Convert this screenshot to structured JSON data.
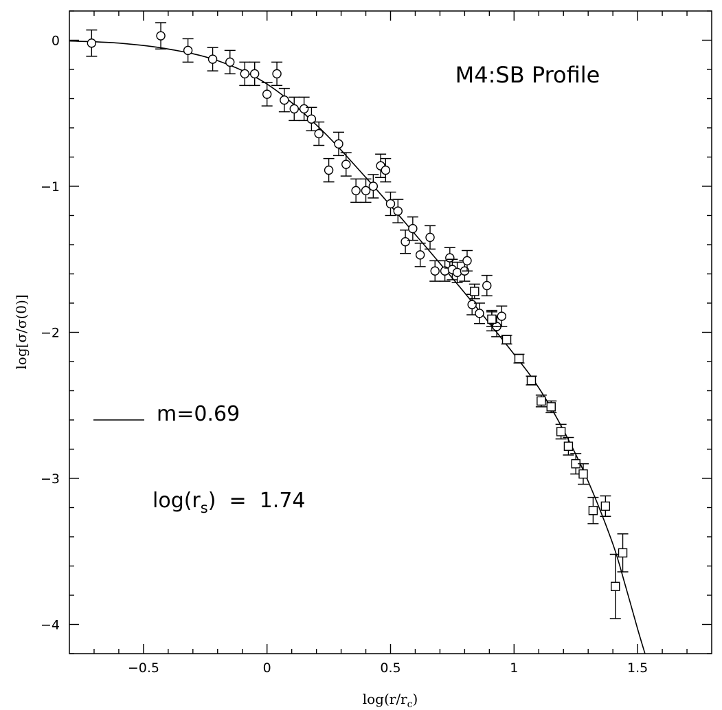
{
  "chart_data": {
    "type": "scatter",
    "title": "M4:SB Profile",
    "xlabel": "log(r/r_c)",
    "ylabel": "log[σ/σ(0)]",
    "xlim": [
      -0.8,
      1.8
    ],
    "ylim": [
      -4.2,
      0.2
    ],
    "x_ticks": [
      -0.5,
      0,
      0.5,
      1,
      1.5
    ],
    "x_tick_labels": [
      "−0.5",
      "0",
      "0.5",
      "1",
      "1.5"
    ],
    "y_ticks": [
      0,
      -1,
      -2,
      -3,
      -4
    ],
    "y_tick_labels": [
      "0",
      "−1",
      "−2",
      "−3",
      "−4"
    ],
    "legend": {
      "line_label": "m=0.69",
      "placement": "left-middle"
    },
    "annotation": "log(r_s) = 1.74",
    "series": [
      {
        "name": "circles",
        "marker": "circle",
        "points": [
          {
            "x": -0.71,
            "y": -0.02,
            "err": 0.09
          },
          {
            "x": -0.43,
            "y": 0.03,
            "err": 0.09
          },
          {
            "x": -0.32,
            "y": -0.07,
            "err": 0.08
          },
          {
            "x": -0.22,
            "y": -0.13,
            "err": 0.08
          },
          {
            "x": -0.15,
            "y": -0.15,
            "err": 0.08
          },
          {
            "x": -0.09,
            "y": -0.23,
            "err": 0.08
          },
          {
            "x": -0.05,
            "y": -0.23,
            "err": 0.08
          },
          {
            "x": 0.0,
            "y": -0.37,
            "err": 0.08
          },
          {
            "x": 0.04,
            "y": -0.23,
            "err": 0.08
          },
          {
            "x": 0.07,
            "y": -0.41,
            "err": 0.08
          },
          {
            "x": 0.11,
            "y": -0.47,
            "err": 0.08
          },
          {
            "x": 0.15,
            "y": -0.47,
            "err": 0.08
          },
          {
            "x": 0.18,
            "y": -0.54,
            "err": 0.08
          },
          {
            "x": 0.21,
            "y": -0.64,
            "err": 0.08
          },
          {
            "x": 0.25,
            "y": -0.89,
            "err": 0.08
          },
          {
            "x": 0.29,
            "y": -0.71,
            "err": 0.08
          },
          {
            "x": 0.32,
            "y": -0.85,
            "err": 0.08
          },
          {
            "x": 0.36,
            "y": -1.03,
            "err": 0.08
          },
          {
            "x": 0.4,
            "y": -1.03,
            "err": 0.08
          },
          {
            "x": 0.43,
            "y": -1.0,
            "err": 0.08
          },
          {
            "x": 0.46,
            "y": -0.86,
            "err": 0.08
          },
          {
            "x": 0.48,
            "y": -0.89,
            "err": 0.08
          },
          {
            "x": 0.5,
            "y": -1.12,
            "err": 0.08
          },
          {
            "x": 0.53,
            "y": -1.17,
            "err": 0.08
          },
          {
            "x": 0.56,
            "y": -1.38,
            "err": 0.08
          },
          {
            "x": 0.59,
            "y": -1.29,
            "err": 0.08
          },
          {
            "x": 0.62,
            "y": -1.47,
            "err": 0.08
          },
          {
            "x": 0.66,
            "y": -1.35,
            "err": 0.08
          },
          {
            "x": 0.68,
            "y": -1.58,
            "err": 0.07
          },
          {
            "x": 0.72,
            "y": -1.58,
            "err": 0.07
          },
          {
            "x": 0.74,
            "y": -1.49,
            "err": 0.07
          },
          {
            "x": 0.75,
            "y": -1.57,
            "err": 0.07
          },
          {
            "x": 0.77,
            "y": -1.59,
            "err": 0.07
          },
          {
            "x": 0.8,
            "y": -1.58,
            "err": 0.07
          },
          {
            "x": 0.81,
            "y": -1.51,
            "err": 0.07
          },
          {
            "x": 0.83,
            "y": -1.81,
            "err": 0.07
          },
          {
            "x": 0.86,
            "y": -1.87,
            "err": 0.07
          },
          {
            "x": 0.89,
            "y": -1.68,
            "err": 0.07
          },
          {
            "x": 0.91,
            "y": -1.92,
            "err": 0.07
          },
          {
            "x": 0.93,
            "y": -1.96,
            "err": 0.07
          },
          {
            "x": 0.95,
            "y": -1.89,
            "err": 0.07
          }
        ]
      },
      {
        "name": "squares",
        "marker": "square",
        "points": [
          {
            "x": 0.84,
            "y": -1.72,
            "err": 0.05
          },
          {
            "x": 0.91,
            "y": -1.91,
            "err": 0.05
          },
          {
            "x": 0.97,
            "y": -2.05,
            "err": 0.03
          },
          {
            "x": 1.02,
            "y": -2.18,
            "err": 0.03
          },
          {
            "x": 1.07,
            "y": -2.33,
            "err": 0.03
          },
          {
            "x": 1.11,
            "y": -2.47,
            "err": 0.04
          },
          {
            "x": 1.15,
            "y": -2.51,
            "err": 0.04
          },
          {
            "x": 1.19,
            "y": -2.68,
            "err": 0.05
          },
          {
            "x": 1.22,
            "y": -2.78,
            "err": 0.06
          },
          {
            "x": 1.25,
            "y": -2.9,
            "err": 0.07
          },
          {
            "x": 1.28,
            "y": -2.97,
            "err": 0.07
          },
          {
            "x": 1.32,
            "y": -3.22,
            "err": 0.09
          },
          {
            "x": 1.37,
            "y": -3.19,
            "err": 0.07
          },
          {
            "x": 1.41,
            "y": -3.74,
            "err": 0.22
          },
          {
            "x": 1.44,
            "y": -3.51,
            "err": 0.13
          }
        ]
      }
    ],
    "fit_curve": {
      "name": "m=0.69",
      "points": [
        [
          -0.8,
          -0.005
        ],
        [
          -0.6,
          -0.02
        ],
        [
          -0.4,
          -0.06
        ],
        [
          -0.2,
          -0.14
        ],
        [
          0.0,
          -0.3
        ],
        [
          0.2,
          -0.58
        ],
        [
          0.4,
          -0.94
        ],
        [
          0.6,
          -1.33
        ],
        [
          0.8,
          -1.73
        ],
        [
          1.0,
          -2.15
        ],
        [
          1.1,
          -2.38
        ],
        [
          1.2,
          -2.67
        ],
        [
          1.3,
          -3.02
        ],
        [
          1.4,
          -3.45
        ],
        [
          1.45,
          -3.73
        ],
        [
          1.5,
          -4.03
        ],
        [
          1.53,
          -4.2
        ]
      ]
    }
  }
}
